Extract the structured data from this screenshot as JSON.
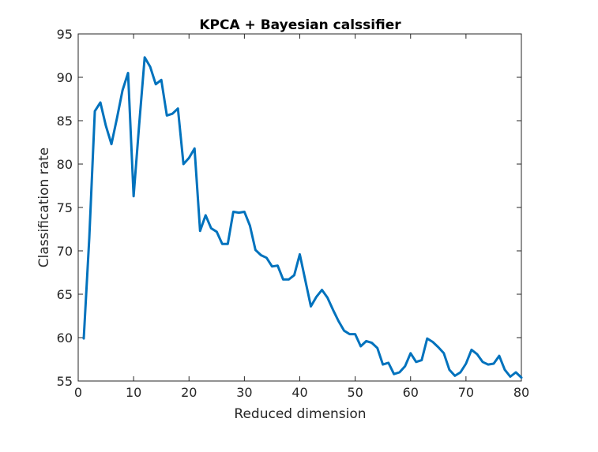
{
  "chart_data": {
    "type": "line",
    "title": "KPCA + Bayesian calssifier",
    "xlabel": "Reduced dimension",
    "ylabel": "Classification rate",
    "xlim": [
      0,
      80
    ],
    "ylim": [
      55,
      95
    ],
    "x_ticks": [
      0,
      10,
      20,
      30,
      40,
      50,
      60,
      70,
      80
    ],
    "y_ticks": [
      55,
      60,
      65,
      70,
      75,
      80,
      85,
      90,
      95
    ],
    "grid": false,
    "line_color": "#0072BD",
    "series": [
      {
        "x": [
          1,
          2,
          3,
          4,
          5,
          6,
          7,
          8,
          9,
          10,
          11,
          12,
          13,
          14,
          15,
          16,
          17,
          18,
          19,
          20,
          21,
          22,
          23,
          24,
          25,
          26,
          27,
          28,
          29,
          30,
          31,
          32,
          33,
          34,
          35,
          36,
          37,
          38,
          39,
          40,
          41,
          42,
          43,
          44,
          45,
          46,
          47,
          48,
          49,
          50,
          51,
          52,
          53,
          54,
          55,
          56,
          57,
          58,
          59,
          60,
          61,
          62,
          63,
          64,
          65,
          66,
          67,
          68,
          69,
          70,
          71,
          72,
          73,
          74,
          75,
          76,
          77,
          78,
          79,
          80
        ],
        "values": [
          59.9,
          71.5,
          86.1,
          87.1,
          84.4,
          82.3,
          85.3,
          88.5,
          90.5,
          76.3,
          84.5,
          92.3,
          91.2,
          89.2,
          89.7,
          85.6,
          85.8,
          86.4,
          80.0,
          80.7,
          81.8,
          72.3,
          74.1,
          72.6,
          72.2,
          70.8,
          70.8,
          74.5,
          74.4,
          74.5,
          72.9,
          70.1,
          69.5,
          69.2,
          68.2,
          68.3,
          66.7,
          66.7,
          67.2,
          69.6,
          66.6,
          63.6,
          64.7,
          65.5,
          64.6,
          63.2,
          61.9,
          60.8,
          60.4,
          60.4,
          59.0,
          59.6,
          59.4,
          58.8,
          56.9,
          57.1,
          55.8,
          56.0,
          56.7,
          58.2,
          57.2,
          57.4,
          59.9,
          59.5,
          58.9,
          58.2,
          56.3,
          55.6,
          56.0,
          57.0,
          58.6,
          58.1,
          57.2,
          56.9,
          57.0,
          57.9,
          56.3,
          55.5,
          56.0,
          55.4
        ]
      }
    ]
  }
}
